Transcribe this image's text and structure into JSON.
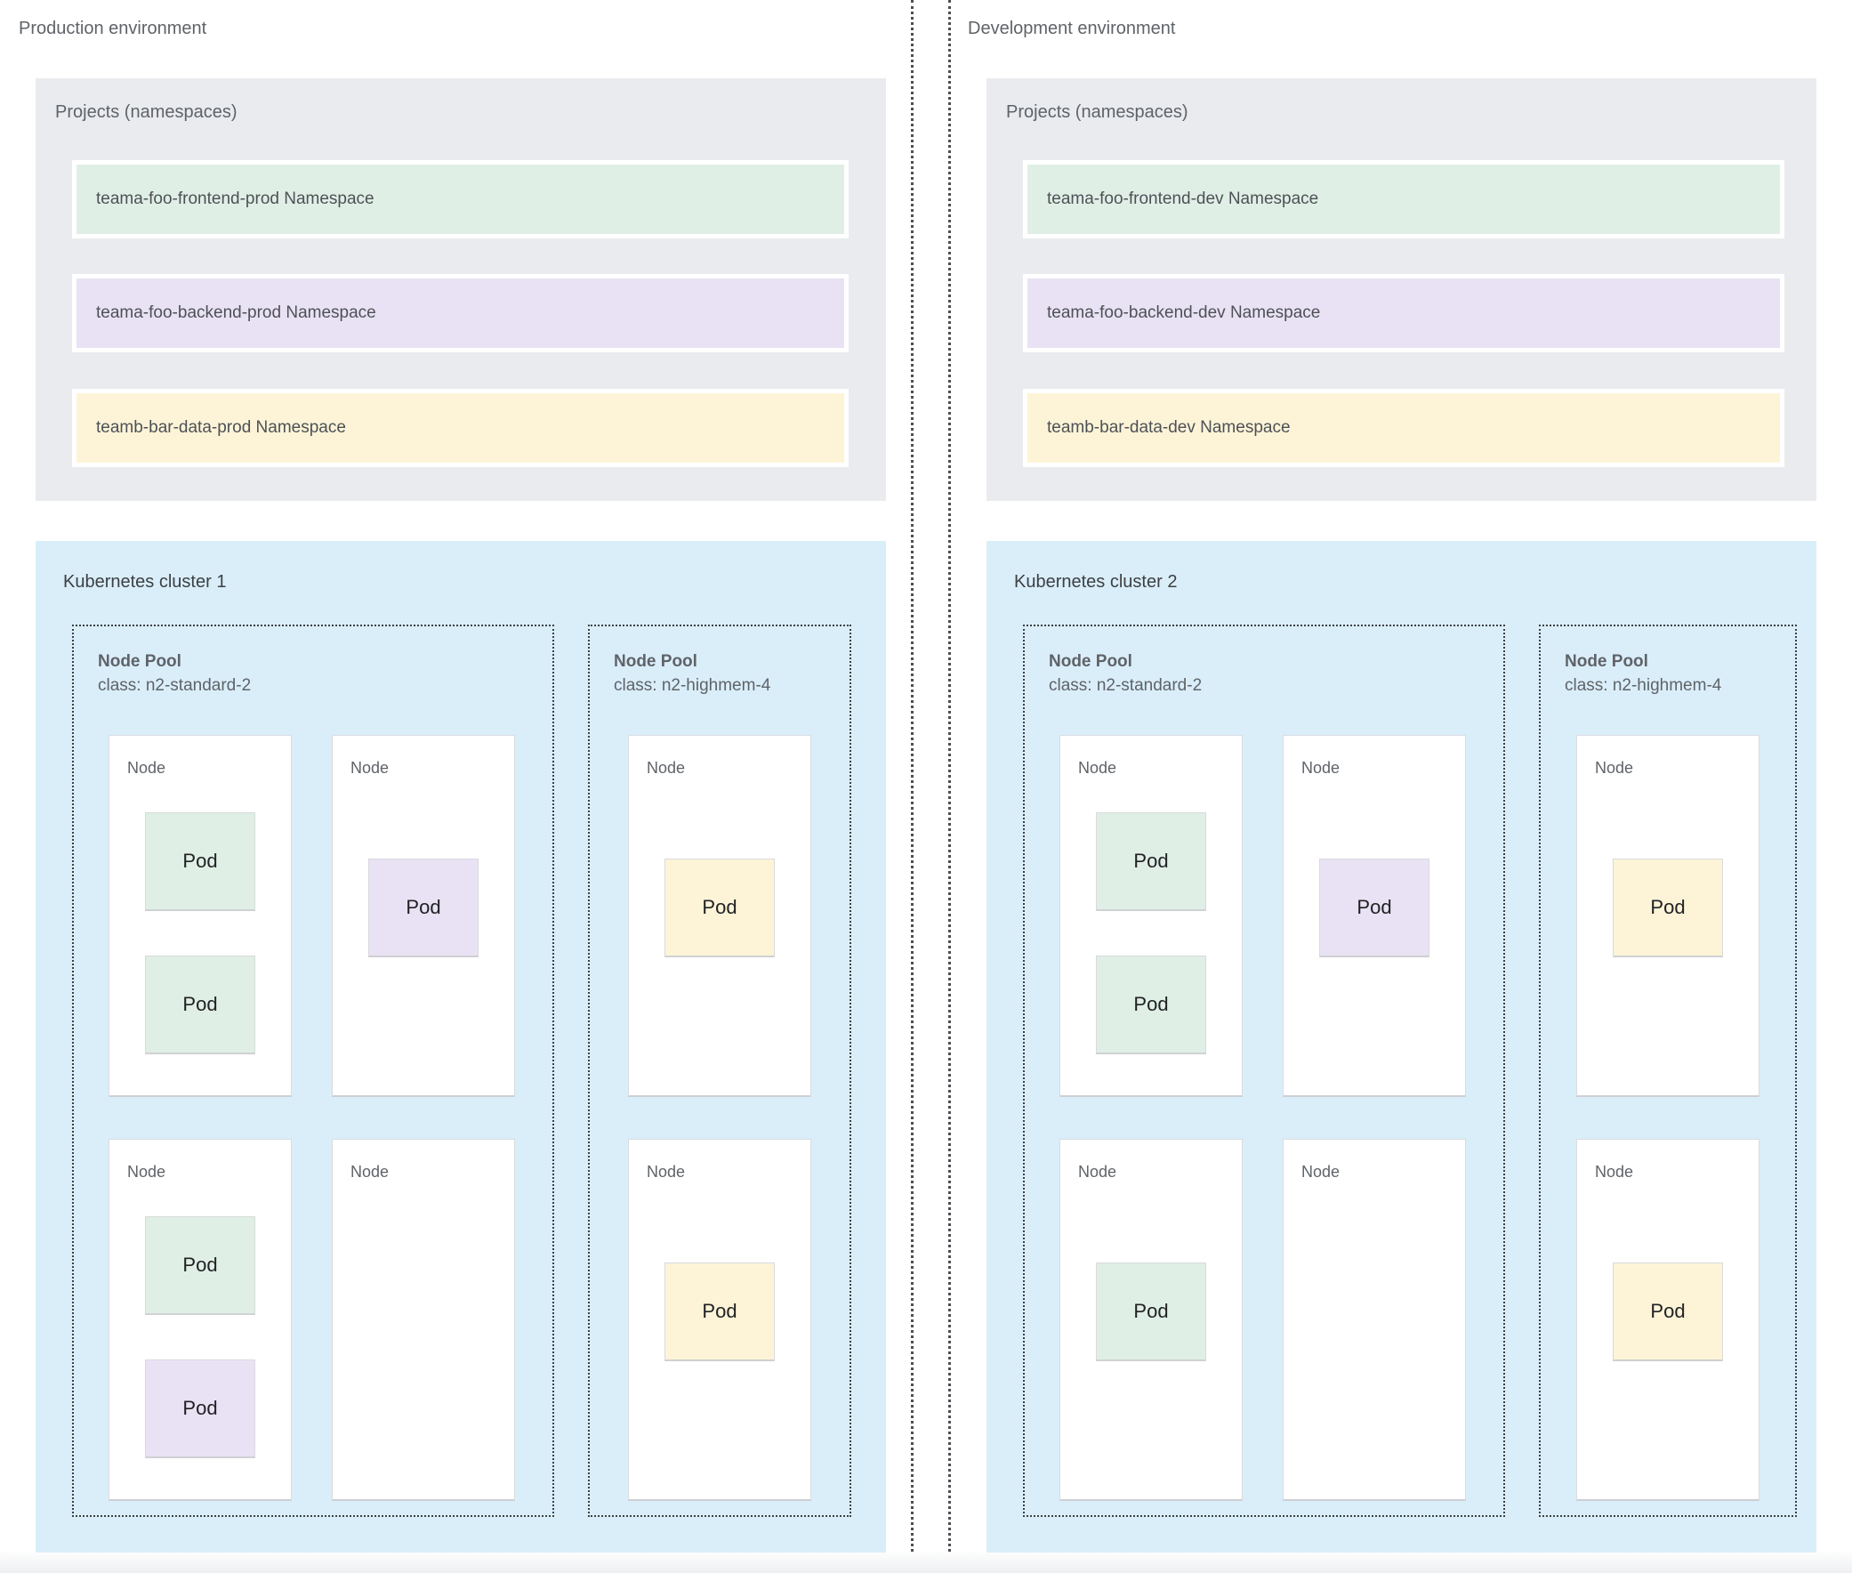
{
  "palette": {
    "namespace_green": "#e0efe6",
    "namespace_purple": "#e9e2f4",
    "namespace_yellow": "#fdf4d8",
    "cluster_bg": "#daeefa",
    "projects_bg": "#e9ebee"
  },
  "environments": [
    {
      "title": "Production environment",
      "projects_label": "Projects (namespaces)",
      "namespaces": [
        {
          "label": "teama-foo-frontend-prod Namespace",
          "color": "green"
        },
        {
          "label": "teama-foo-backend-prod Namespace",
          "color": "purple"
        },
        {
          "label": "teamb-bar-data-prod Namespace",
          "color": "yellow"
        }
      ],
      "cluster": {
        "title": "Kubernetes cluster 1",
        "node_pools": [
          {
            "name": "Node Pool",
            "class_line": "class: n2-standard-2",
            "nodes": [
              {
                "label": "Node",
                "pods": [
                  {
                    "label": "Pod",
                    "color": "green"
                  },
                  {
                    "label": "Pod",
                    "color": "green"
                  }
                ]
              },
              {
                "label": "Node",
                "pods": [
                  {
                    "label": "Pod",
                    "color": "purple"
                  }
                ]
              },
              {
                "label": "Node",
                "pods": [
                  {
                    "label": "Pod",
                    "color": "green"
                  },
                  {
                    "label": "Pod",
                    "color": "purple"
                  }
                ]
              },
              {
                "label": "Node",
                "pods": []
              }
            ]
          },
          {
            "name": "Node Pool",
            "class_line": "class: n2-highmem-4",
            "nodes": [
              {
                "label": "Node",
                "pods": [
                  {
                    "label": "Pod",
                    "color": "yellow"
                  }
                ]
              },
              {
                "label": "Node",
                "pods": [
                  {
                    "label": "Pod",
                    "color": "yellow"
                  }
                ]
              }
            ]
          }
        ]
      }
    },
    {
      "title": "Development environment",
      "projects_label": "Projects (namespaces)",
      "namespaces": [
        {
          "label": "teama-foo-frontend-dev Namespace",
          "color": "green"
        },
        {
          "label": "teama-foo-backend-dev Namespace",
          "color": "purple"
        },
        {
          "label": "teamb-bar-data-dev Namespace",
          "color": "yellow"
        }
      ],
      "cluster": {
        "title": "Kubernetes cluster 2",
        "node_pools": [
          {
            "name": "Node Pool",
            "class_line": "class: n2-standard-2",
            "nodes": [
              {
                "label": "Node",
                "pods": [
                  {
                    "label": "Pod",
                    "color": "green"
                  },
                  {
                    "label": "Pod",
                    "color": "green"
                  }
                ]
              },
              {
                "label": "Node",
                "pods": [
                  {
                    "label": "Pod",
                    "color": "purple"
                  }
                ]
              },
              {
                "label": "Node",
                "pods": [
                  {
                    "label": "Pod",
                    "color": "green"
                  }
                ]
              },
              {
                "label": "Node",
                "pods": []
              }
            ]
          },
          {
            "name": "Node Pool",
            "class_line": "class: n2-highmem-4",
            "nodes": [
              {
                "label": "Node",
                "pods": [
                  {
                    "label": "Pod",
                    "color": "yellow"
                  }
                ]
              },
              {
                "label": "Node",
                "pods": [
                  {
                    "label": "Pod",
                    "color": "yellow"
                  }
                ]
              }
            ]
          }
        ]
      }
    }
  ]
}
